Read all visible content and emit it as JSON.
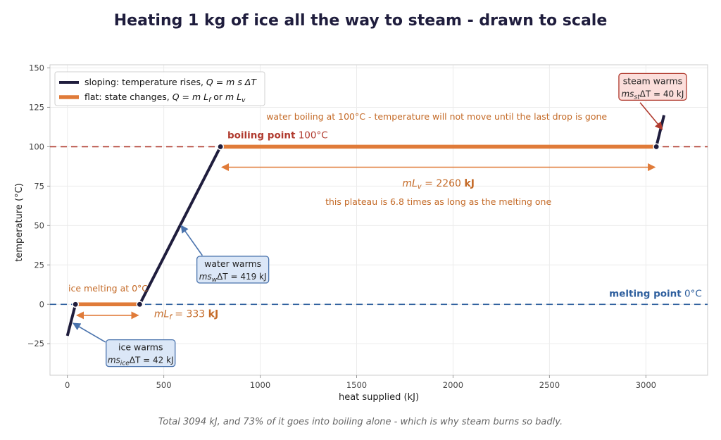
{
  "chart_data": {
    "type": "line",
    "title": "Heating 1 kg of ice all the way to steam - drawn to scale",
    "xlabel": "heat supplied  (kJ)",
    "ylabel": "temperature  (°C)",
    "xlim": [
      -90,
      3320
    ],
    "ylim": [
      -45,
      152
    ],
    "xticks": [
      0,
      500,
      1000,
      1500,
      2000,
      2500,
      3000
    ],
    "yticks": [
      -25,
      0,
      25,
      50,
      75,
      100,
      125,
      150
    ],
    "grid": true,
    "legend_placement": "top-left",
    "series": [
      {
        "name": "sloping: temperature rises,  Q = m s ΔT",
        "color": "#1f1d3d",
        "segments": [
          [
            {
              "x": 0,
              "y": -20
            },
            {
              "x": 42,
              "y": 0
            }
          ],
          [
            {
              "x": 375,
              "y": 0
            },
            {
              "x": 794,
              "y": 100
            }
          ],
          [
            {
              "x": 3054,
              "y": 100
            },
            {
              "x": 3094,
              "y": 120
            }
          ]
        ]
      },
      {
        "name": "flat: state changes,  Q = m L_f  or  m L_v",
        "color": "#e07b39",
        "segments": [
          [
            {
              "x": 42,
              "y": 0
            },
            {
              "x": 375,
              "y": 0
            }
          ],
          [
            {
              "x": 794,
              "y": 100
            },
            {
              "x": 3054,
              "y": 100
            }
          ]
        ]
      }
    ],
    "points": [
      {
        "x": 42,
        "y": 0
      },
      {
        "x": 375,
        "y": 0
      },
      {
        "x": 794,
        "y": 100
      },
      {
        "x": 3054,
        "y": 100
      }
    ],
    "reference_lines": [
      {
        "y": 100,
        "color": "#b03a2e",
        "label_bold": "boiling point",
        "label_value": "100°C"
      },
      {
        "y": 0,
        "color": "#2e5f9e",
        "label_bold": "melting point",
        "label_value": "0°C"
      }
    ],
    "span_arrows": [
      {
        "x1": 42,
        "x2": 375,
        "y": -7,
        "label_math": "mL_f = 333",
        "label_unit": "kJ"
      },
      {
        "x1": 794,
        "x2": 3054,
        "y": 87,
        "label_math": "mL_v = 2260",
        "label_unit": "kJ"
      }
    ],
    "callouts": [
      {
        "name": "ice warms",
        "line1": "ice warms",
        "line2_prefix": "ms",
        "line2_sub": "ice",
        "line2_suffix": "ΔT = 42 kJ",
        "value": 42
      },
      {
        "name": "water warms",
        "line1": "water warms",
        "line2_prefix": "ms",
        "line2_sub": "w",
        "line2_suffix": "ΔT = 419 kJ",
        "value": 419
      },
      {
        "name": "steam warms",
        "line1": "steam warms",
        "line2_prefix": "ms",
        "line2_sub": "st",
        "line2_suffix": "ΔT = 40 kJ",
        "value": 40
      }
    ],
    "annotations": {
      "ice_melting": "ice melting at 0°C",
      "water_boiling": "water boiling at 100°C - temperature will not move until the last drop is gone",
      "plateau_ratio": "this plateau is 6.8 times as long as the melting one"
    },
    "footer": "Total 3094 kJ, and 73% of it goes into boiling alone - which is why steam burns so badly.",
    "legend": [
      {
        "prefix": "sloping: temperature rises,  ",
        "math": "Q = m s ΔT",
        "color": "#1f1d3d"
      },
      {
        "prefix": "flat: state changes,  ",
        "math": "Q = m L",
        "sub1": "f",
        "mid": "  or  ",
        "math2": "m L",
        "sub2": "v",
        "color": "#e07b39"
      }
    ],
    "colors": {
      "dark_line": "#1f1d3d",
      "orange": "#e07b39",
      "boiling_red": "#b03a2e",
      "melting_blue": "#2e5f9e"
    }
  }
}
